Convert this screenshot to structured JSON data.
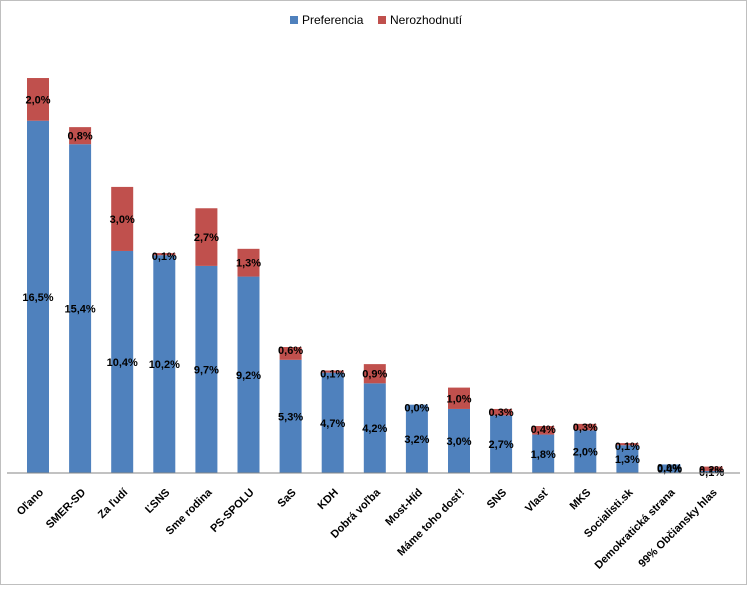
{
  "chart_data": {
    "type": "bar",
    "stacked": true,
    "title": "",
    "xlabel": "",
    "ylabel": "",
    "ylim": [
      0,
      20
    ],
    "grid": false,
    "legend": "top-center",
    "categories": [
      "Oľano",
      "SMER-SD",
      "Za ľudí",
      "ĽSNS",
      "Sme rodina",
      "PS-SPOLU",
      "SaS",
      "KDH",
      "Dobrá voľba",
      "Most-Híd",
      "Máme toho dosť!",
      "SNS",
      "Vlasť",
      "MKS",
      "Socialisti.sk",
      "Demokratická strana",
      "99% Občiansky hlas"
    ],
    "series": [
      {
        "name": "Preferencia",
        "color": "#4F81BD",
        "values": [
          16.5,
          15.4,
          10.4,
          10.2,
          9.7,
          9.2,
          5.3,
          4.7,
          4.2,
          3.2,
          3.0,
          2.7,
          1.8,
          2.0,
          1.3,
          0.4,
          0.1
        ],
        "labels": [
          "16,5%",
          "15,4%",
          "10,4%",
          "10,2%",
          "9,7%",
          "9,2%",
          "5,3%",
          "4,7%",
          "4,2%",
          "3,2%",
          "3,0%",
          "2,7%",
          "1,8%",
          "2,0%",
          "1,3%",
          "0,4%",
          "0,1%"
        ]
      },
      {
        "name": "Nerozhodnutí",
        "color": "#C0504D",
        "values": [
          2.0,
          0.8,
          3.0,
          0.1,
          2.7,
          1.3,
          0.6,
          0.1,
          0.9,
          0.0,
          1.0,
          0.3,
          0.4,
          0.3,
          0.1,
          0.0,
          0.2
        ],
        "labels": [
          "2,0%",
          "0,8%",
          "3,0%",
          "0,1%",
          "2,7%",
          "1,3%",
          "0,6%",
          "0,1%",
          "0,9%",
          "0,0%",
          "1,0%",
          "0,3%",
          "0,4%",
          "0,3%",
          "0,1%",
          "0,0%",
          "0,2%"
        ]
      }
    ]
  }
}
